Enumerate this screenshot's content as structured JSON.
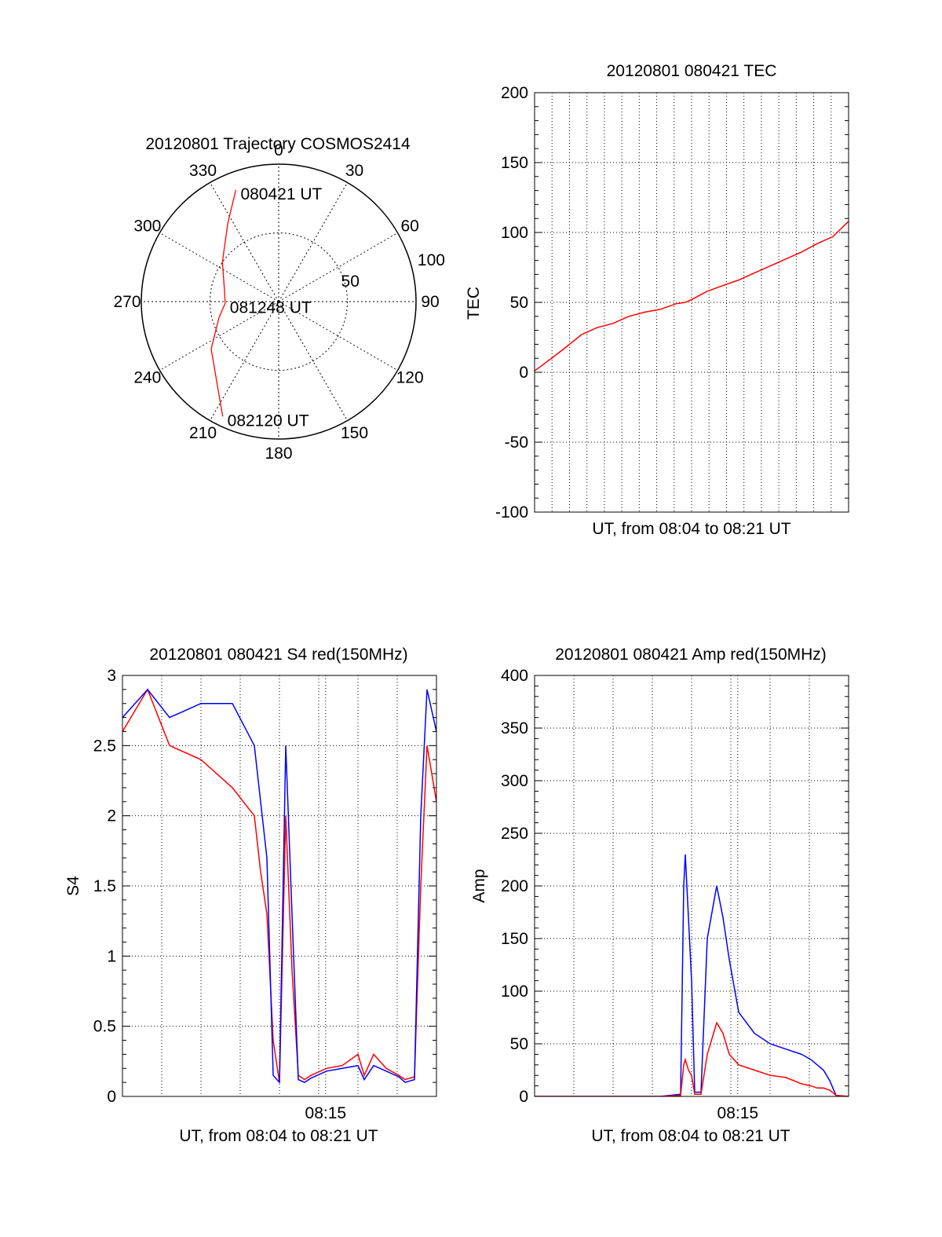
{
  "chart_data": [
    {
      "type": "polar-trajectory",
      "title": "20120801 Trajectory COSMOS2414",
      "azimuth_labels": [
        "0",
        "30",
        "60",
        "90",
        "120",
        "150",
        "180",
        "210",
        "240",
        "270",
        "300",
        "330"
      ],
      "radius_labels": [
        "50",
        "100"
      ],
      "radius_range": [
        0,
        100
      ],
      "ring_values": [
        50
      ],
      "grid": true,
      "series": [
        {
          "color": "#ff0000",
          "points": [
            {
              "az": 339,
              "r": 87
            },
            {
              "az": 327,
              "r": 68
            },
            {
              "az": 305,
              "r": 50
            },
            {
              "az": 280,
              "r": 40
            },
            {
              "az": 268,
              "r": 39
            },
            {
              "az": 255,
              "r": 45
            },
            {
              "az": 235,
              "r": 60
            },
            {
              "az": 206,
              "r": 93
            }
          ]
        }
      ],
      "annotations": [
        {
          "text": "080421 UT",
          "az": 339,
          "r": 87
        },
        {
          "text": "081248 UT",
          "az": 268,
          "r": 39
        },
        {
          "text": "082120 UT",
          "az": 206,
          "r": 93
        }
      ]
    },
    {
      "type": "line",
      "title": "20120801 080421 TEC",
      "xlabel": "UT, from 08:04 to 08:21 UT",
      "ylabel": "TEC",
      "xlim": [
        0,
        1
      ],
      "ylim": [
        -100,
        200
      ],
      "yticks": [
        "-100",
        "-50",
        "0",
        "50",
        "100",
        "150",
        "200"
      ],
      "xticks": [],
      "grid": true,
      "series": [
        {
          "color": "#ff0000",
          "x": [
            0.0,
            0.03,
            0.06,
            0.1,
            0.15,
            0.2,
            0.25,
            0.3,
            0.35,
            0.4,
            0.45,
            0.48,
            0.5,
            0.55,
            0.6,
            0.65,
            0.7,
            0.75,
            0.8,
            0.85,
            0.9,
            0.95,
            1.0
          ],
          "y": [
            1,
            6,
            11,
            18,
            27,
            32,
            35,
            40,
            43,
            45,
            49,
            50,
            52,
            58,
            62,
            66,
            71,
            76,
            81,
            86,
            92,
            97,
            108
          ]
        }
      ]
    },
    {
      "type": "line",
      "title": "20120801 080421 S4 red(150MHz)",
      "xlabel": "UT, from 08:04 to 08:21 UT",
      "ylabel": "S4",
      "xlim": [
        0,
        1
      ],
      "ylim": [
        0,
        3
      ],
      "yticks": [
        "0",
        "0.5",
        "1",
        "1.5",
        "2",
        "2.5",
        "3"
      ],
      "xticks": [
        {
          "label": "08:15",
          "x": 0.647
        }
      ],
      "grid": true,
      "series": [
        {
          "color": "#ff0000",
          "x": [
            0.0,
            0.08,
            0.15,
            0.25,
            0.35,
            0.42,
            0.44,
            0.46,
            0.48,
            0.5,
            0.52,
            0.54,
            0.56,
            0.58,
            0.6,
            0.65,
            0.7,
            0.75,
            0.77,
            0.8,
            0.84,
            0.88,
            0.9,
            0.93,
            0.95,
            0.97,
            1.0
          ],
          "y": [
            2.6,
            2.9,
            2.5,
            2.4,
            2.2,
            2.0,
            1.6,
            1.3,
            0.4,
            0.1,
            2.0,
            0.9,
            0.15,
            0.12,
            0.15,
            0.2,
            0.22,
            0.3,
            0.15,
            0.3,
            0.2,
            0.15,
            0.12,
            0.14,
            1.5,
            2.5,
            2.1
          ]
        },
        {
          "color": "#0000ff",
          "x": [
            0.0,
            0.08,
            0.15,
            0.25,
            0.35,
            0.42,
            0.44,
            0.46,
            0.48,
            0.5,
            0.52,
            0.54,
            0.56,
            0.58,
            0.6,
            0.65,
            0.7,
            0.75,
            0.77,
            0.8,
            0.84,
            0.88,
            0.9,
            0.93,
            0.95,
            0.97,
            1.0
          ],
          "y": [
            2.7,
            2.9,
            2.7,
            2.8,
            2.8,
            2.5,
            2.1,
            1.7,
            0.15,
            0.1,
            2.5,
            1.3,
            0.12,
            0.1,
            0.13,
            0.18,
            0.2,
            0.22,
            0.12,
            0.22,
            0.18,
            0.14,
            0.1,
            0.12,
            2.0,
            2.9,
            2.6
          ]
        }
      ]
    },
    {
      "type": "line",
      "title": "20120801 080421 Amp red(150MHz)",
      "xlabel": "UT, from 08:04 to 08:21 UT",
      "ylabel": "Amp",
      "xlim": [
        0,
        1
      ],
      "ylim": [
        0,
        400
      ],
      "yticks": [
        "0",
        "50",
        "100",
        "150",
        "200",
        "250",
        "300",
        "350",
        "400"
      ],
      "xticks": [
        {
          "label": "08:15",
          "x": 0.647
        }
      ],
      "grid": true,
      "series": [
        {
          "color": "#0000ff",
          "x": [
            0.0,
            0.2,
            0.4,
            0.465,
            0.475,
            0.48,
            0.49,
            0.5,
            0.51,
            0.53,
            0.55,
            0.58,
            0.6,
            0.62,
            0.65,
            0.7,
            0.75,
            0.8,
            0.85,
            0.88,
            0.9,
            0.92,
            0.94,
            0.96,
            1.0
          ],
          "y": [
            0,
            0,
            0,
            2,
            200,
            230,
            170,
            110,
            4,
            4,
            150,
            200,
            170,
            130,
            80,
            60,
            50,
            45,
            40,
            35,
            30,
            25,
            15,
            1,
            0
          ]
        },
        {
          "color": "#ff0000",
          "x": [
            0.0,
            0.2,
            0.4,
            0.465,
            0.475,
            0.48,
            0.49,
            0.5,
            0.51,
            0.53,
            0.55,
            0.58,
            0.6,
            0.62,
            0.65,
            0.7,
            0.75,
            0.8,
            0.85,
            0.88,
            0.9,
            0.92,
            0.94,
            0.96,
            1.0
          ],
          "y": [
            0,
            0,
            0,
            1,
            30,
            35,
            25,
            20,
            2,
            2,
            40,
            70,
            60,
            40,
            30,
            25,
            20,
            18,
            12,
            10,
            8,
            8,
            6,
            1,
            0
          ]
        }
      ]
    }
  ]
}
